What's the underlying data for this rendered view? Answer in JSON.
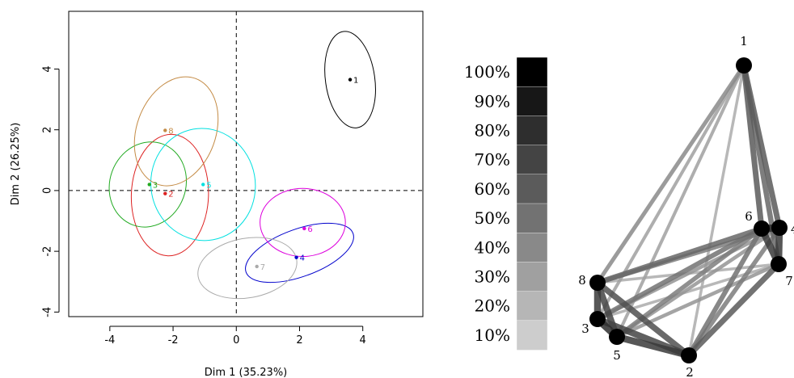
{
  "chart_data": [
    {
      "type": "scatter",
      "title": "",
      "xlabel": "Dim 1 (35.23%)",
      "ylabel": "Dim 2 (26.25%)",
      "xlim": [
        -5.3,
        5.9
      ],
      "ylim": [
        -4.15,
        5.9
      ],
      "xticks": [
        "-4",
        "-2",
        "0",
        "2",
        "4"
      ],
      "xtick_values": [
        -4,
        -2,
        0,
        2,
        4
      ],
      "yticks": [
        "-4",
        "-2",
        "0",
        "2",
        "4"
      ],
      "ytick_values": [
        -4,
        -2,
        0,
        2,
        4
      ],
      "reference_lines": {
        "x": 0,
        "y": 0,
        "style": "dashed"
      },
      "points": [
        {
          "label": "1",
          "x": 3.6,
          "y": 3.65,
          "color": "#000000",
          "ellipse": {
            "cx": 3.6,
            "cy": 3.65,
            "rx": 0.78,
            "ry": 1.6,
            "angle": -8
          }
        },
        {
          "label": "2",
          "x": -2.25,
          "y": -0.1,
          "color": "#dd2222",
          "ellipse": {
            "cx": -2.1,
            "cy": -0.15,
            "rx": 1.22,
            "ry": 2.0,
            "angle": 2
          }
        },
        {
          "label": "3",
          "x": -2.75,
          "y": 0.2,
          "color": "#22aa22",
          "ellipse": {
            "cx": -2.8,
            "cy": 0.2,
            "rx": 1.2,
            "ry": 1.42,
            "angle": 20
          }
        },
        {
          "label": "4",
          "x": 1.9,
          "y": -2.2,
          "color": "#0000cc",
          "ellipse": {
            "cx": 2.0,
            "cy": -2.05,
            "rx": 1.8,
            "ry": 0.78,
            "angle": -20
          }
        },
        {
          "label": "5",
          "x": -1.05,
          "y": 0.2,
          "color": "#00e0e0",
          "ellipse": {
            "cx": -1.05,
            "cy": 0.2,
            "rx": 1.65,
            "ry": 1.85,
            "angle": -10
          }
        },
        {
          "label": "6",
          "x": 2.15,
          "y": -1.25,
          "color": "#dd00dd",
          "ellipse": {
            "cx": 2.1,
            "cy": -1.05,
            "rx": 1.35,
            "ry": 1.12,
            "angle": 0
          }
        },
        {
          "label": "7",
          "x": 0.65,
          "y": -2.5,
          "color": "#aaaaaa",
          "ellipse": {
            "cx": 0.35,
            "cy": -2.55,
            "rx": 1.58,
            "ry": 0.98,
            "angle": -10
          }
        },
        {
          "label": "8",
          "x": -2.25,
          "y": 1.98,
          "color": "#c48b45",
          "ellipse": {
            "cx": -1.9,
            "cy": 1.95,
            "rx": 1.25,
            "ry": 1.85,
            "angle": 20
          }
        }
      ]
    },
    {
      "type": "network",
      "scale_labels": [
        "100%",
        "90%",
        "80%",
        "70%",
        "60%",
        "50%",
        "40%",
        "30%",
        "20%",
        "10%"
      ],
      "scale_values": [
        100,
        90,
        80,
        70,
        60,
        50,
        40,
        30,
        20,
        10
      ],
      "nodes": [
        {
          "id": "1",
          "label": "1"
        },
        {
          "id": "2",
          "label": "2"
        },
        {
          "id": "3",
          "label": "3"
        },
        {
          "id": "4",
          "label": "4"
        },
        {
          "id": "5",
          "label": "5"
        },
        {
          "id": "6",
          "label": "6"
        },
        {
          "id": "7",
          "label": "7"
        },
        {
          "id": "8",
          "label": "8"
        }
      ],
      "edges": [
        {
          "source": "1",
          "target": "6",
          "weight": 60
        },
        {
          "source": "1",
          "target": "4",
          "weight": 60
        },
        {
          "source": "1",
          "target": "7",
          "weight": 55
        },
        {
          "source": "1",
          "target": "8",
          "weight": 40
        },
        {
          "source": "1",
          "target": "3",
          "weight": 30
        },
        {
          "source": "1",
          "target": "5",
          "weight": 30
        },
        {
          "source": "1",
          "target": "2",
          "weight": 25
        },
        {
          "source": "6",
          "target": "4",
          "weight": 80
        },
        {
          "source": "6",
          "target": "7",
          "weight": 75
        },
        {
          "source": "4",
          "target": "7",
          "weight": 75
        },
        {
          "source": "6",
          "target": "8",
          "weight": 55
        },
        {
          "source": "6",
          "target": "3",
          "weight": 50
        },
        {
          "source": "6",
          "target": "5",
          "weight": 45
        },
        {
          "source": "6",
          "target": "2",
          "weight": 50
        },
        {
          "source": "4",
          "target": "8",
          "weight": 45
        },
        {
          "source": "4",
          "target": "3",
          "weight": 35
        },
        {
          "source": "4",
          "target": "5",
          "weight": 35
        },
        {
          "source": "4",
          "target": "2",
          "weight": 45
        },
        {
          "source": "7",
          "target": "8",
          "weight": 25
        },
        {
          "source": "7",
          "target": "3",
          "weight": 25
        },
        {
          "source": "7",
          "target": "5",
          "weight": 35
        },
        {
          "source": "7",
          "target": "2",
          "weight": 60
        },
        {
          "source": "8",
          "target": "3",
          "weight": 75
        },
        {
          "source": "8",
          "target": "5",
          "weight": 70
        },
        {
          "source": "8",
          "target": "2",
          "weight": 65
        },
        {
          "source": "3",
          "target": "5",
          "weight": 80
        },
        {
          "source": "3",
          "target": "2",
          "weight": 70
        },
        {
          "source": "5",
          "target": "2",
          "weight": 75
        }
      ]
    }
  ]
}
